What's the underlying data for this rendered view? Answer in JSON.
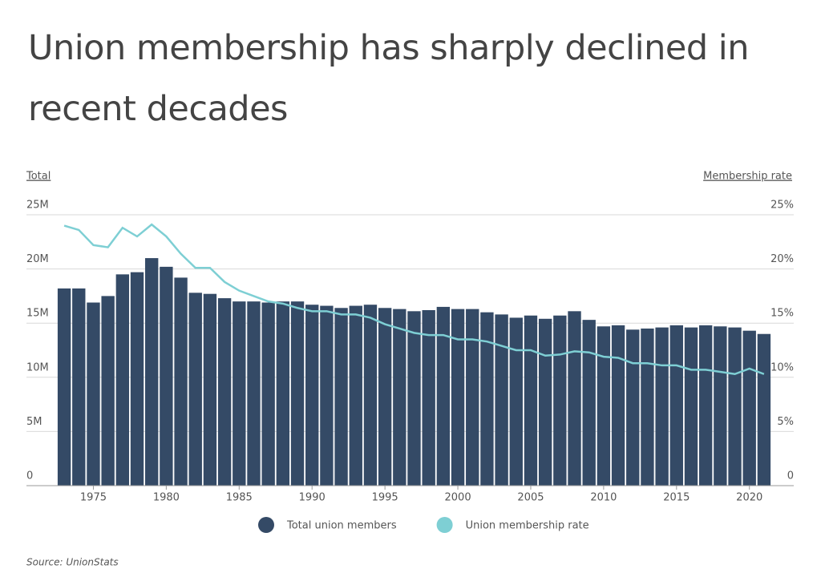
{
  "chart_data": {
    "type": "bar",
    "title": "Union membership has sharply declined in recent decades",
    "y_axis_label": "Total",
    "y2_axis_label": "Membership rate",
    "source": "Source:  UnionStats",
    "x": [
      1973,
      1974,
      1975,
      1976,
      1977,
      1978,
      1979,
      1980,
      1981,
      1982,
      1983,
      1984,
      1985,
      1986,
      1987,
      1988,
      1989,
      1990,
      1991,
      1992,
      1993,
      1994,
      1995,
      1996,
      1997,
      1998,
      1999,
      2000,
      2001,
      2002,
      2003,
      2004,
      2005,
      2006,
      2007,
      2008,
      2009,
      2010,
      2011,
      2012,
      2013,
      2014,
      2015,
      2016,
      2017,
      2018,
      2019,
      2020,
      2021
    ],
    "xlim": [
      1972.5,
      2021.5
    ],
    "xticks": [
      1975,
      1980,
      1985,
      1990,
      1995,
      2000,
      2005,
      2010,
      2015,
      2020
    ],
    "ylim": [
      0,
      25
    ],
    "yticks": [
      0,
      {
        "value": 5,
        "label": "5M"
      },
      {
        "value": 10,
        "label": "10M"
      },
      {
        "value": 15,
        "label": "15M"
      },
      {
        "value": 20,
        "label": "20M"
      },
      {
        "value": 25,
        "label": "25M"
      }
    ],
    "y2lim": [
      0,
      25
    ],
    "y2ticks": [
      0,
      {
        "value": 5,
        "label": "5%"
      },
      {
        "value": 10,
        "label": "10%"
      },
      {
        "value": 15,
        "label": "15%"
      },
      {
        "value": 20,
        "label": "20%"
      },
      {
        "value": 25,
        "label": "25%"
      }
    ],
    "grid": true,
    "series": [
      {
        "name": "Total union members",
        "type": "bar",
        "color": "#344a66",
        "values": [
          18.2,
          18.2,
          16.9,
          17.5,
          19.5,
          19.7,
          21.0,
          20.2,
          19.2,
          17.8,
          17.7,
          17.3,
          17.0,
          17.0,
          16.9,
          17.0,
          17.0,
          16.7,
          16.6,
          16.4,
          16.6,
          16.7,
          16.4,
          16.3,
          16.1,
          16.2,
          16.5,
          16.3,
          16.3,
          16.0,
          15.8,
          15.5,
          15.7,
          15.4,
          15.7,
          16.1,
          15.3,
          14.7,
          14.8,
          14.4,
          14.5,
          14.6,
          14.8,
          14.6,
          14.8,
          14.7,
          14.6,
          14.3,
          14.0
        ]
      },
      {
        "name": "Union membership rate",
        "type": "line",
        "axis": "y2",
        "color": "#7ecfd4",
        "values": [
          24.0,
          23.6,
          22.2,
          22.0,
          23.8,
          23.0,
          24.1,
          23.0,
          21.4,
          20.1,
          20.1,
          18.8,
          18.0,
          17.5,
          17.0,
          16.8,
          16.4,
          16.1,
          16.1,
          15.8,
          15.8,
          15.5,
          14.9,
          14.5,
          14.1,
          13.9,
          13.9,
          13.5,
          13.5,
          13.3,
          12.9,
          12.5,
          12.5,
          12.0,
          12.1,
          12.4,
          12.3,
          11.9,
          11.8,
          11.3,
          11.3,
          11.1,
          11.1,
          10.7,
          10.7,
          10.5,
          10.3,
          10.8,
          10.3
        ]
      }
    ]
  }
}
